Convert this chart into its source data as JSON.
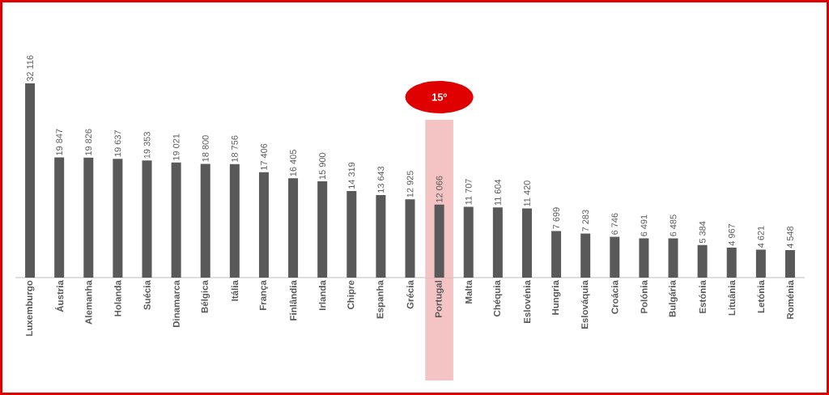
{
  "chart_data": {
    "type": "bar",
    "categories": [
      "Luxemburgo",
      "Áustria",
      "Alemanha",
      "Holanda",
      "Suécia",
      "Dinamarca",
      "Bélgica",
      "Itália",
      "França",
      "Finlândia",
      "Irlanda",
      "Chipre",
      "Espanha",
      "Grécia",
      "Portugal",
      "Malta",
      "Chéquia",
      "Eslovénia",
      "Hungria",
      "Eslováquia",
      "Croácia",
      "Polónia",
      "Bulgária",
      "Estónia",
      "Lituânia",
      "Letónia",
      "Roménia"
    ],
    "values": [
      32116,
      19847,
      19826,
      19637,
      19353,
      19021,
      18800,
      18756,
      17406,
      16405,
      15900,
      14319,
      13643,
      12925,
      12066,
      11707,
      11604,
      11420,
      7699,
      7283,
      6746,
      6491,
      6485,
      5384,
      4967,
      4621,
      4548
    ],
    "value_labels": [
      "32 116",
      "19 847",
      "19 826",
      "19 637",
      "19 353",
      "19 021",
      "18 800",
      "18 756",
      "17 406",
      "16 405",
      "15 900",
      "14 319",
      "13 643",
      "12 925",
      "12 066",
      "11 707",
      "11 604",
      "11 420",
      "7 699",
      "7 283",
      "6 746",
      "6 491",
      "6 485",
      "5 384",
      "4 967",
      "4 621",
      "4 548"
    ],
    "color": "#595959",
    "bands": [
      {
        "axis": "x",
        "from": "Portugal",
        "to": "Portugal",
        "label": "15º",
        "color": "#f4c4c4"
      }
    ]
  }
}
